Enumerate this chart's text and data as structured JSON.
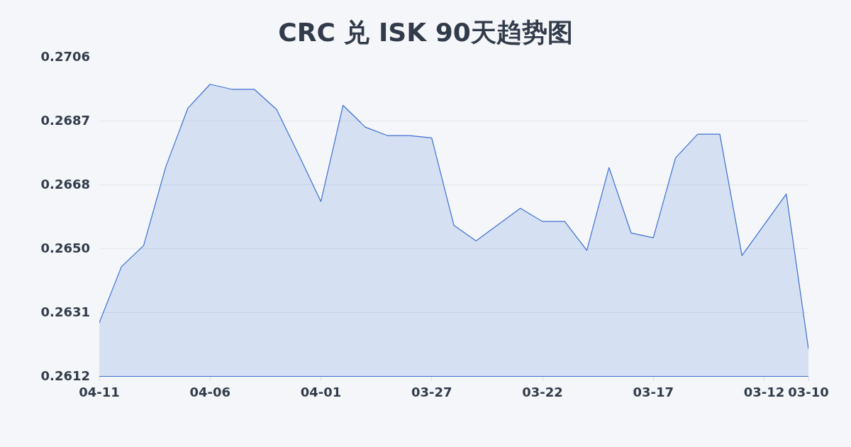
{
  "chart_data": {
    "type": "area",
    "title": "CRC 兑 ISK 90天趋势图",
    "x": [
      "--04-11",
      "--04-10",
      "--04-09",
      "--04-08",
      "--04-07",
      "--04-06",
      "--04-05",
      "--04-04",
      "--04-03",
      "--04-02",
      "--04-01",
      "--03-31",
      "--03-30",
      "--03-29",
      "--03-28",
      "--03-27",
      "--03-26",
      "--03-25",
      "--03-24",
      "--03-23",
      "--03-22",
      "--03-21",
      "--03-20",
      "--03-19",
      "--03-18",
      "--03-17",
      "--03-16",
      "--03-15",
      "--03-14",
      "--03-13",
      "--03-12",
      "--03-11",
      "--03-10"
    ],
    "series": [
      {
        "color": "#3d6fd1",
        "values": [
          0.26277,
          0.26442,
          0.26504,
          0.26736,
          0.26909,
          0.26979,
          0.26964,
          0.26964,
          0.26905,
          0.26771,
          0.26634,
          0.26917,
          0.26853,
          0.26828,
          0.26828,
          0.26821,
          0.26564,
          0.26518,
          0.26566,
          0.26614,
          0.26575,
          0.26575,
          0.2649,
          0.26734,
          0.26541,
          0.26527,
          0.26762,
          0.26832,
          0.26832,
          0.26475,
          0.26565,
          0.26656,
          0.262
        ]
      }
    ],
    "xlim": [
      "--04-11",
      "--03-10"
    ],
    "xticks": [
      {
        "value": "--04-11",
        "label": "04-11"
      },
      {
        "value": "--04-06",
        "label": "04-06"
      },
      {
        "value": "--04-01",
        "label": "04-01"
      },
      {
        "value": "--03-27",
        "label": "03-27"
      },
      {
        "value": "--03-22",
        "label": "03-22"
      },
      {
        "value": "--03-17",
        "label": "03-17"
      },
      {
        "value": "--03-12",
        "label": "03-12"
      },
      {
        "value": "--03-10",
        "label": "03-10"
      }
    ],
    "ylim": [
      0.2612,
      0.2706
    ],
    "yticks": [
      0.2612,
      {
        "value": 0.26308,
        "label": "0.2631"
      },
      {
        "value": 0.26496,
        "label": "0.2650"
      },
      {
        "value": 0.26684,
        "label": "0.2668"
      },
      {
        "value": 0.26872,
        "label": "0.2687"
      },
      0.2706
    ],
    "grid": "y"
  }
}
